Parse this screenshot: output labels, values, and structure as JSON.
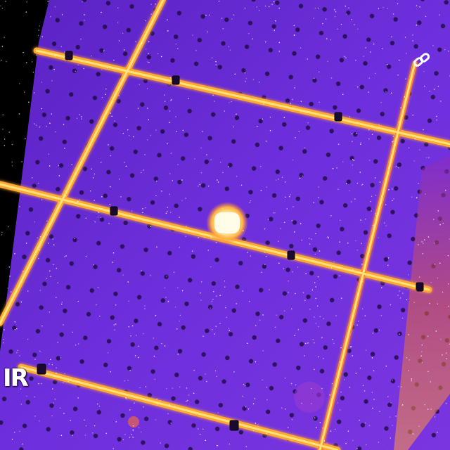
{
  "overlay": {
    "mode_label": "IR",
    "link_icon": "link-icon"
  },
  "colors": {
    "background": "#000000",
    "panel_base": "#6a2bd8",
    "panel_dark": "#4a1a9c",
    "frame_hot": "#ffb030",
    "frame_core": "#ffe070",
    "hotspot": "#fffbe0",
    "edge_strip": "#ff7a3a"
  }
}
